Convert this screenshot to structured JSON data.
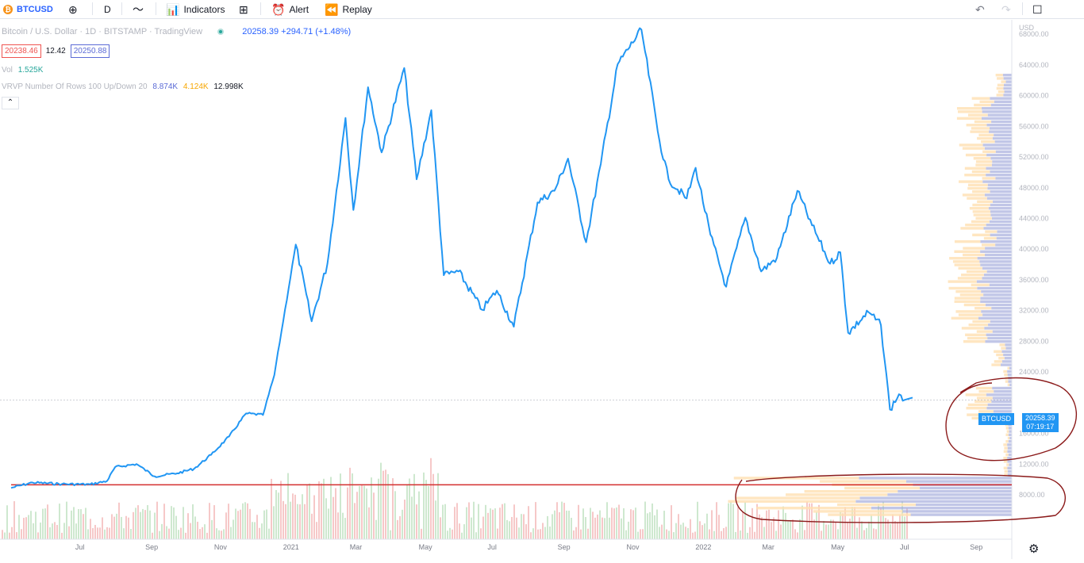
{
  "toolbar": {
    "symbol": "BTCUSD",
    "interval": "D",
    "indicators_label": "Indicators",
    "alert_label": "Alert",
    "replay_label": "Replay"
  },
  "legend": {
    "title": "Bitcoin / U.S. Dollar · 1D · BITSTAMP · TradingView",
    "last": "20258.39",
    "change": "+294.71 (+1.48%)",
    "bid": "20238.46",
    "spread": "12.42",
    "ask": "20250.88",
    "vol_label": "Vol",
    "vol_value": "1.525K",
    "vrvp_label": "VRVP Number Of Rows 100 Up/Down 20",
    "vrvp_up": "8.874K",
    "vrvp_down": "4.124K",
    "vrvp_total": "12.998K"
  },
  "price_tag": {
    "symbol": "BTCUSD",
    "price": "20258.39",
    "countdown": "07:19:17"
  },
  "colors": {
    "line": "#2196f3",
    "up_vol": "#26a69a",
    "down_vol": "#ef5350",
    "profile_up": "#7986cb",
    "profile_down": "#ffcc80",
    "annotation": "#8b1a1a",
    "hline": "#d32f2f"
  },
  "chart_data": {
    "type": "line",
    "x_ticks": [
      "Jul",
      "Sep",
      "Nov",
      "2021",
      "Mar",
      "May",
      "Jul",
      "Sep",
      "Nov",
      "2022",
      "Mar",
      "May",
      "Jul",
      "Sep"
    ],
    "y_ticks": [
      "USD",
      "68000.00",
      "64000.00",
      "60000.00",
      "56000.00",
      "52000.00",
      "48000.00",
      "44000.00",
      "40000.00",
      "36000.00",
      "32000.00",
      "28000.00",
      "24000.00",
      "16000.00",
      "12000.00",
      "8000.00"
    ],
    "ylim": [
      5000,
      70000
    ],
    "series": [
      {
        "values": [
          [
            "2020-05-01",
            8800
          ],
          [
            "2020-05-20",
            9500
          ],
          [
            "2020-06-15",
            9300
          ],
          [
            "2020-07-10",
            9250
          ],
          [
            "2020-07-25",
            9700
          ],
          [
            "2020-08-01",
            11500
          ],
          [
            "2020-08-20",
            11900
          ],
          [
            "2020-09-05",
            10300
          ],
          [
            "2020-09-25",
            10700
          ],
          [
            "2020-10-10",
            11300
          ],
          [
            "2020-10-25",
            13100
          ],
          [
            "2020-11-10",
            15500
          ],
          [
            "2020-11-25",
            18500
          ],
          [
            "2020-12-10",
            18300
          ],
          [
            "2020-12-20",
            23500
          ],
          [
            "2021-01-08",
            40500
          ],
          [
            "2021-01-22",
            30500
          ],
          [
            "2021-02-05",
            38000
          ],
          [
            "2021-02-21",
            57000
          ],
          [
            "2021-02-28",
            45000
          ],
          [
            "2021-03-13",
            61000
          ],
          [
            "2021-03-25",
            52500
          ],
          [
            "2021-04-14",
            63500
          ],
          [
            "2021-04-25",
            49000
          ],
          [
            "2021-05-08",
            58000
          ],
          [
            "2021-05-19",
            36500
          ],
          [
            "2021-06-01",
            37000
          ],
          [
            "2021-06-22",
            32000
          ],
          [
            "2021-07-05",
            34500
          ],
          [
            "2021-07-20",
            29800
          ],
          [
            "2021-08-10",
            46000
          ],
          [
            "2021-08-25",
            47500
          ],
          [
            "2021-09-06",
            51700
          ],
          [
            "2021-09-22",
            40800
          ],
          [
            "2021-10-05",
            51000
          ],
          [
            "2021-10-20",
            64000
          ],
          [
            "2021-11-10",
            68500
          ],
          [
            "2021-11-26",
            54000
          ],
          [
            "2021-12-04",
            49000
          ],
          [
            "2021-12-20",
            46500
          ],
          [
            "2021-12-28",
            50500
          ],
          [
            "2022-01-10",
            41800
          ],
          [
            "2022-01-24",
            35000
          ],
          [
            "2022-02-10",
            44000
          ],
          [
            "2022-02-24",
            37000
          ],
          [
            "2022-03-10",
            38800
          ],
          [
            "2022-03-28",
            47500
          ],
          [
            "2022-04-10",
            43000
          ],
          [
            "2022-04-26",
            38000
          ],
          [
            "2022-05-05",
            39500
          ],
          [
            "2022-05-12",
            29000
          ],
          [
            "2022-05-30",
            31700
          ],
          [
            "2022-06-10",
            30000
          ],
          [
            "2022-06-18",
            19000
          ],
          [
            "2022-06-26",
            21000
          ],
          [
            "2022-07-01",
            20258.39
          ]
        ]
      }
    ],
    "hline": 9200,
    "current_price": 20258.39
  }
}
